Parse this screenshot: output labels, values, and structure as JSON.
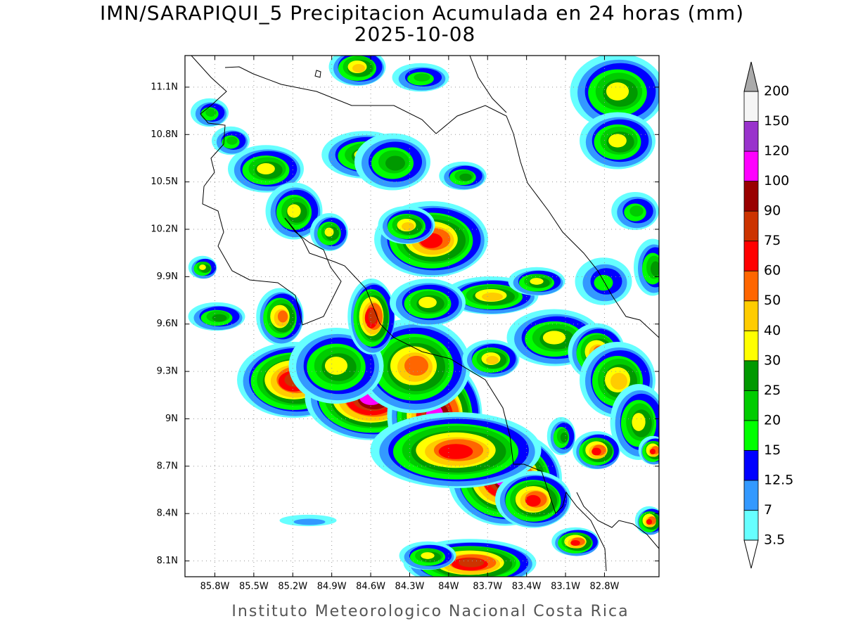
{
  "map": {
    "title": "IMN/SARAPIQUI_5 Precipitacion Acumulada en 24 horas (mm)",
    "subtitle": "2025-10-08",
    "footer": "Instituto Meteorologico Nacional Costa Rica",
    "lon_range": [
      -86.03,
      -82.38
    ],
    "lat_range": [
      8.0,
      11.3
    ],
    "lon_ticks": [
      {
        "value": -85.8,
        "label": "85.8W"
      },
      {
        "value": -85.5,
        "label": "85.5W"
      },
      {
        "value": -85.2,
        "label": "85.2W"
      },
      {
        "value": -84.9,
        "label": "84.9W"
      },
      {
        "value": -84.6,
        "label": "84.6W"
      },
      {
        "value": -84.3,
        "label": "84.3W"
      },
      {
        "value": -84.0,
        "label": "84W"
      },
      {
        "value": -83.7,
        "label": "83.7W"
      },
      {
        "value": -83.4,
        "label": "83.4W"
      },
      {
        "value": -83.1,
        "label": "83.1W"
      },
      {
        "value": -82.8,
        "label": "82.8W"
      }
    ],
    "lat_ticks": [
      {
        "value": 8.1,
        "label": "8.1N"
      },
      {
        "value": 8.4,
        "label": "8.4N"
      },
      {
        "value": 8.7,
        "label": "8.7N"
      },
      {
        "value": 9.0,
        "label": "9N"
      },
      {
        "value": 9.3,
        "label": "9.3N"
      },
      {
        "value": 9.6,
        "label": "9.6N"
      },
      {
        "value": 9.9,
        "label": "9.9N"
      },
      {
        "value": 10.2,
        "label": "10.2N"
      },
      {
        "value": 10.5,
        "label": "10.5N"
      },
      {
        "value": 10.8,
        "label": "10.8N"
      },
      {
        "value": 11.1,
        "label": "11.1N"
      }
    ],
    "grid": true,
    "colorbar": {
      "levels": [
        3.5,
        7,
        12.5,
        15,
        20,
        25,
        30,
        40,
        50,
        60,
        75,
        90,
        100,
        120,
        150,
        200
      ],
      "colors": [
        "#66ffff",
        "#3399ff",
        "#0000ff",
        "#00ff00",
        "#00cc00",
        "#009900",
        "#ffff00",
        "#ffcc00",
        "#ff6600",
        "#ff0000",
        "#cc3300",
        "#990000",
        "#ff00ff",
        "#9933cc",
        "#f5f5f5"
      ],
      "over_color": "#aaaaaa",
      "under_color": "#ffffff"
    }
  }
}
